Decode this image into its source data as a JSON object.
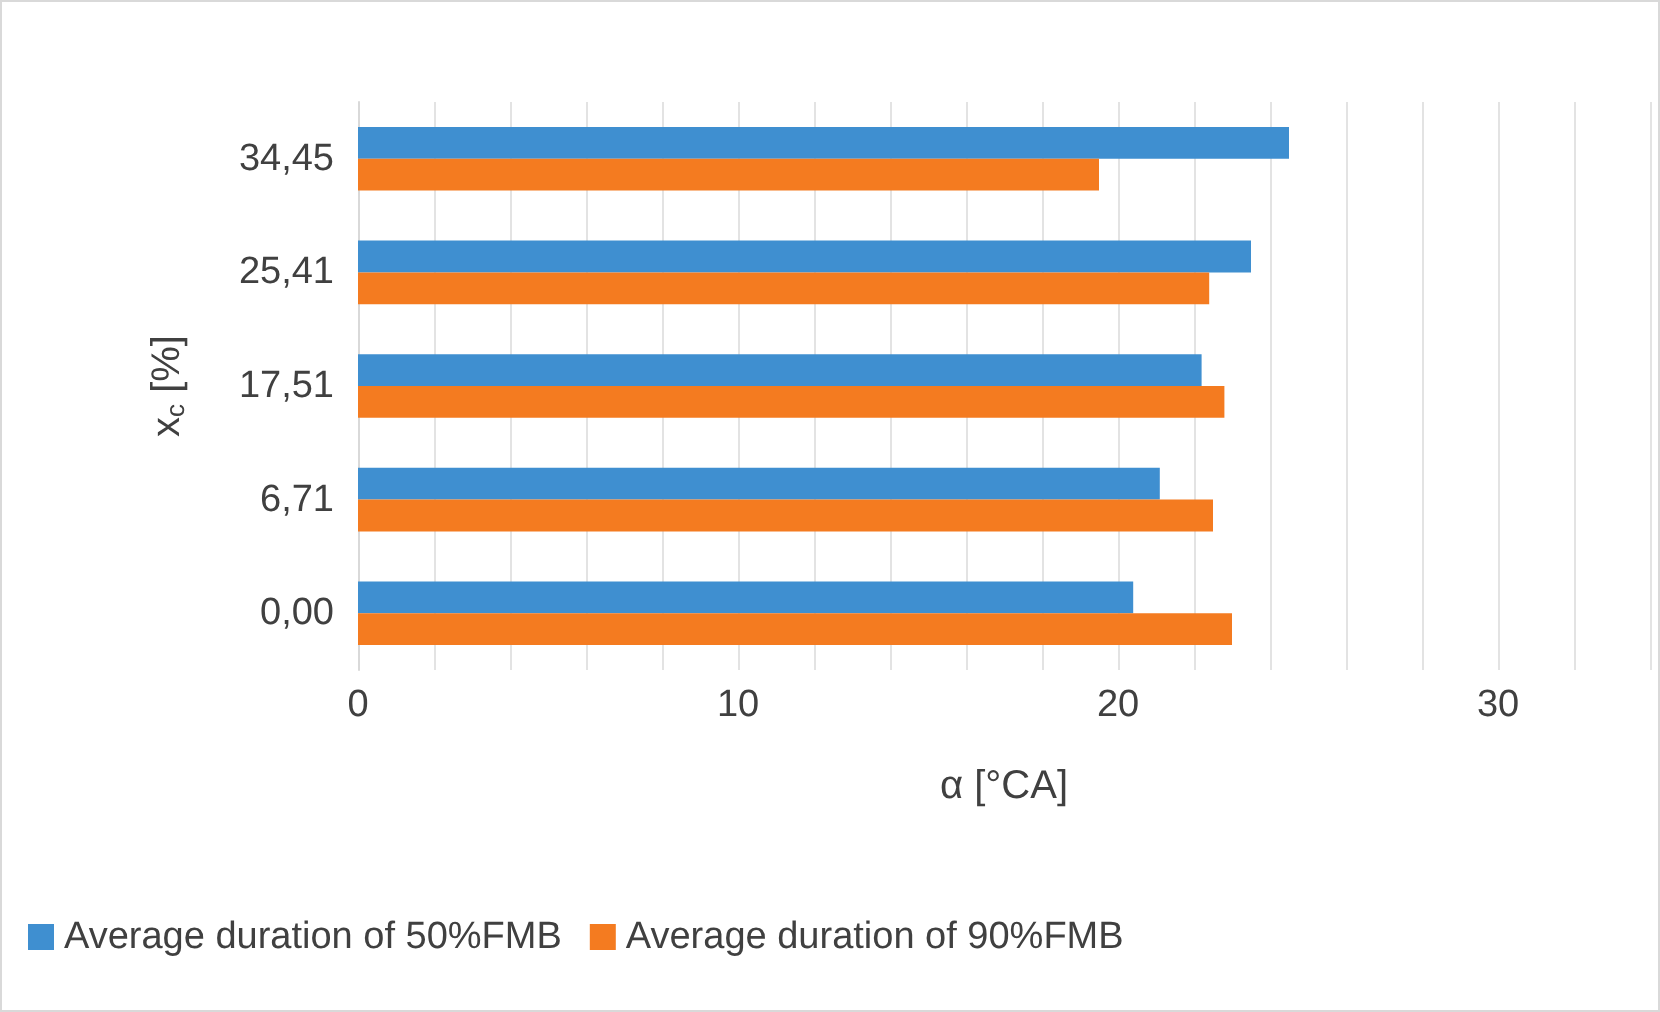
{
  "chart_data": {
    "type": "bar",
    "orientation": "horizontal",
    "xlabel": "α [°CA]",
    "ylabel": "x$_{c}$ [%]",
    "categories": [
      "34,45",
      "25,41",
      "17,51",
      "6,71",
      "0,00"
    ],
    "series": [
      {
        "name": "Average duration of 50%FMB",
        "color": "#3f8fd0",
        "values": [
          24.5,
          23.5,
          22.2,
          21.1,
          20.4
        ]
      },
      {
        "name": "Average duration of 90%FMB",
        "color": "#f47b20",
        "values": [
          19.5,
          22.4,
          22.8,
          22.5,
          23.0
        ]
      }
    ],
    "xlim": [
      0,
      34
    ],
    "xticks": [
      0,
      {
        "value": 2,
        "label": null
      },
      {
        "value": 4,
        "label": null
      },
      {
        "value": 6,
        "label": null
      },
      {
        "value": 8,
        "label": null
      },
      10,
      {
        "value": 12,
        "label": null
      },
      {
        "value": 14,
        "label": null
      },
      {
        "value": 16,
        "label": null
      },
      {
        "value": 18,
        "label": null
      },
      20,
      {
        "value": 22,
        "label": null
      },
      {
        "value": 24,
        "label": null
      },
      {
        "value": 26,
        "label": null
      },
      {
        "value": 28,
        "label": null
      },
      30,
      {
        "value": 32,
        "label": null
      },
      {
        "value": 34,
        "label": null
      }
    ],
    "grid": "x",
    "legend": "bottom"
  }
}
